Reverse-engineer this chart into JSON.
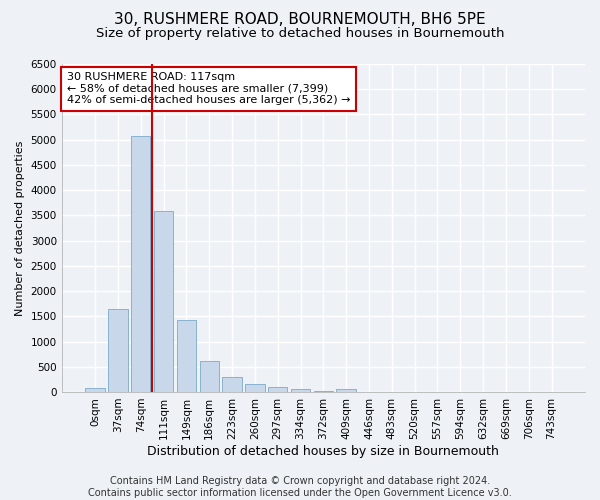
{
  "title": "30, RUSHMERE ROAD, BOURNEMOUTH, BH6 5PE",
  "subtitle": "Size of property relative to detached houses in Bournemouth",
  "xlabel": "Distribution of detached houses by size in Bournemouth",
  "ylabel": "Number of detached properties",
  "footer_line1": "Contains HM Land Registry data © Crown copyright and database right 2024.",
  "footer_line2": "Contains public sector information licensed under the Open Government Licence v3.0.",
  "annotation_title": "30 RUSHMERE ROAD: 117sqm",
  "annotation_line2": "← 58% of detached houses are smaller (7,399)",
  "annotation_line3": "42% of semi-detached houses are larger (5,362) →",
  "bar_color": "#c8d8ea",
  "bar_edge_color": "#7aaac8",
  "vline_color": "#cc0000",
  "vline_x": 2.5,
  "categories": [
    "0sqm",
    "37sqm",
    "74sqm",
    "111sqm",
    "149sqm",
    "186sqm",
    "223sqm",
    "260sqm",
    "297sqm",
    "334sqm",
    "372sqm",
    "409sqm",
    "446sqm",
    "483sqm",
    "520sqm",
    "557sqm",
    "594sqm",
    "632sqm",
    "669sqm",
    "706sqm",
    "743sqm"
  ],
  "values": [
    75,
    1640,
    5070,
    3580,
    1420,
    615,
    305,
    155,
    90,
    55,
    25,
    60,
    0,
    0,
    0,
    0,
    0,
    0,
    0,
    0,
    0
  ],
  "ylim": [
    0,
    6500
  ],
  "yticks": [
    0,
    500,
    1000,
    1500,
    2000,
    2500,
    3000,
    3500,
    4000,
    4500,
    5000,
    5500,
    6000,
    6500
  ],
  "background_color": "#eef2f7",
  "grid_color": "#ffffff",
  "title_fontsize": 11,
  "subtitle_fontsize": 9.5,
  "xlabel_fontsize": 9,
  "ylabel_fontsize": 8,
  "tick_fontsize": 7.5,
  "annotation_fontsize": 8,
  "footer_fontsize": 7
}
